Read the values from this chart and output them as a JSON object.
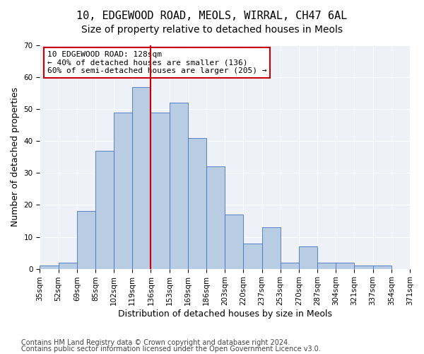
{
  "title1": "10, EDGEWOOD ROAD, MEOLS, WIRRAL, CH47 6AL",
  "title2": "Size of property relative to detached houses in Meols",
  "xlabel": "Distribution of detached houses by size in Meols",
  "ylabel": "Number of detached properties",
  "bins": [
    "35sqm",
    "52sqm",
    "69sqm",
    "85sqm",
    "102sqm",
    "119sqm",
    "136sqm",
    "153sqm",
    "169sqm",
    "186sqm",
    "203sqm",
    "220sqm",
    "237sqm",
    "253sqm",
    "270sqm",
    "287sqm",
    "304sqm",
    "321sqm",
    "337sqm",
    "354sqm",
    "371sqm"
  ],
  "values": [
    1,
    2,
    18,
    37,
    49,
    57,
    49,
    52,
    41,
    32,
    17,
    8,
    13,
    2,
    7,
    2,
    2,
    1,
    1,
    0
  ],
  "bar_color": "#b8cce4",
  "bar_edge_color": "#4472c4",
  "vline_color": "#cc0000",
  "annotation_text": "10 EDGEWOOD ROAD: 128sqm\n← 40% of detached houses are smaller (136)\n60% of semi-detached houses are larger (205) →",
  "annotation_box_color": "white",
  "annotation_box_edge": "#cc0000",
  "ylim": [
    0,
    70
  ],
  "yticks": [
    0,
    10,
    20,
    30,
    40,
    50,
    60,
    70
  ],
  "background_color": "#eef2f8",
  "footer1": "Contains HM Land Registry data © Crown copyright and database right 2024.",
  "footer2": "Contains public sector information licensed under the Open Government Licence v3.0.",
  "title1_fontsize": 11,
  "title2_fontsize": 10,
  "xlabel_fontsize": 9,
  "ylabel_fontsize": 9,
  "tick_fontsize": 7.5,
  "annotation_fontsize": 8,
  "footer_fontsize": 7
}
